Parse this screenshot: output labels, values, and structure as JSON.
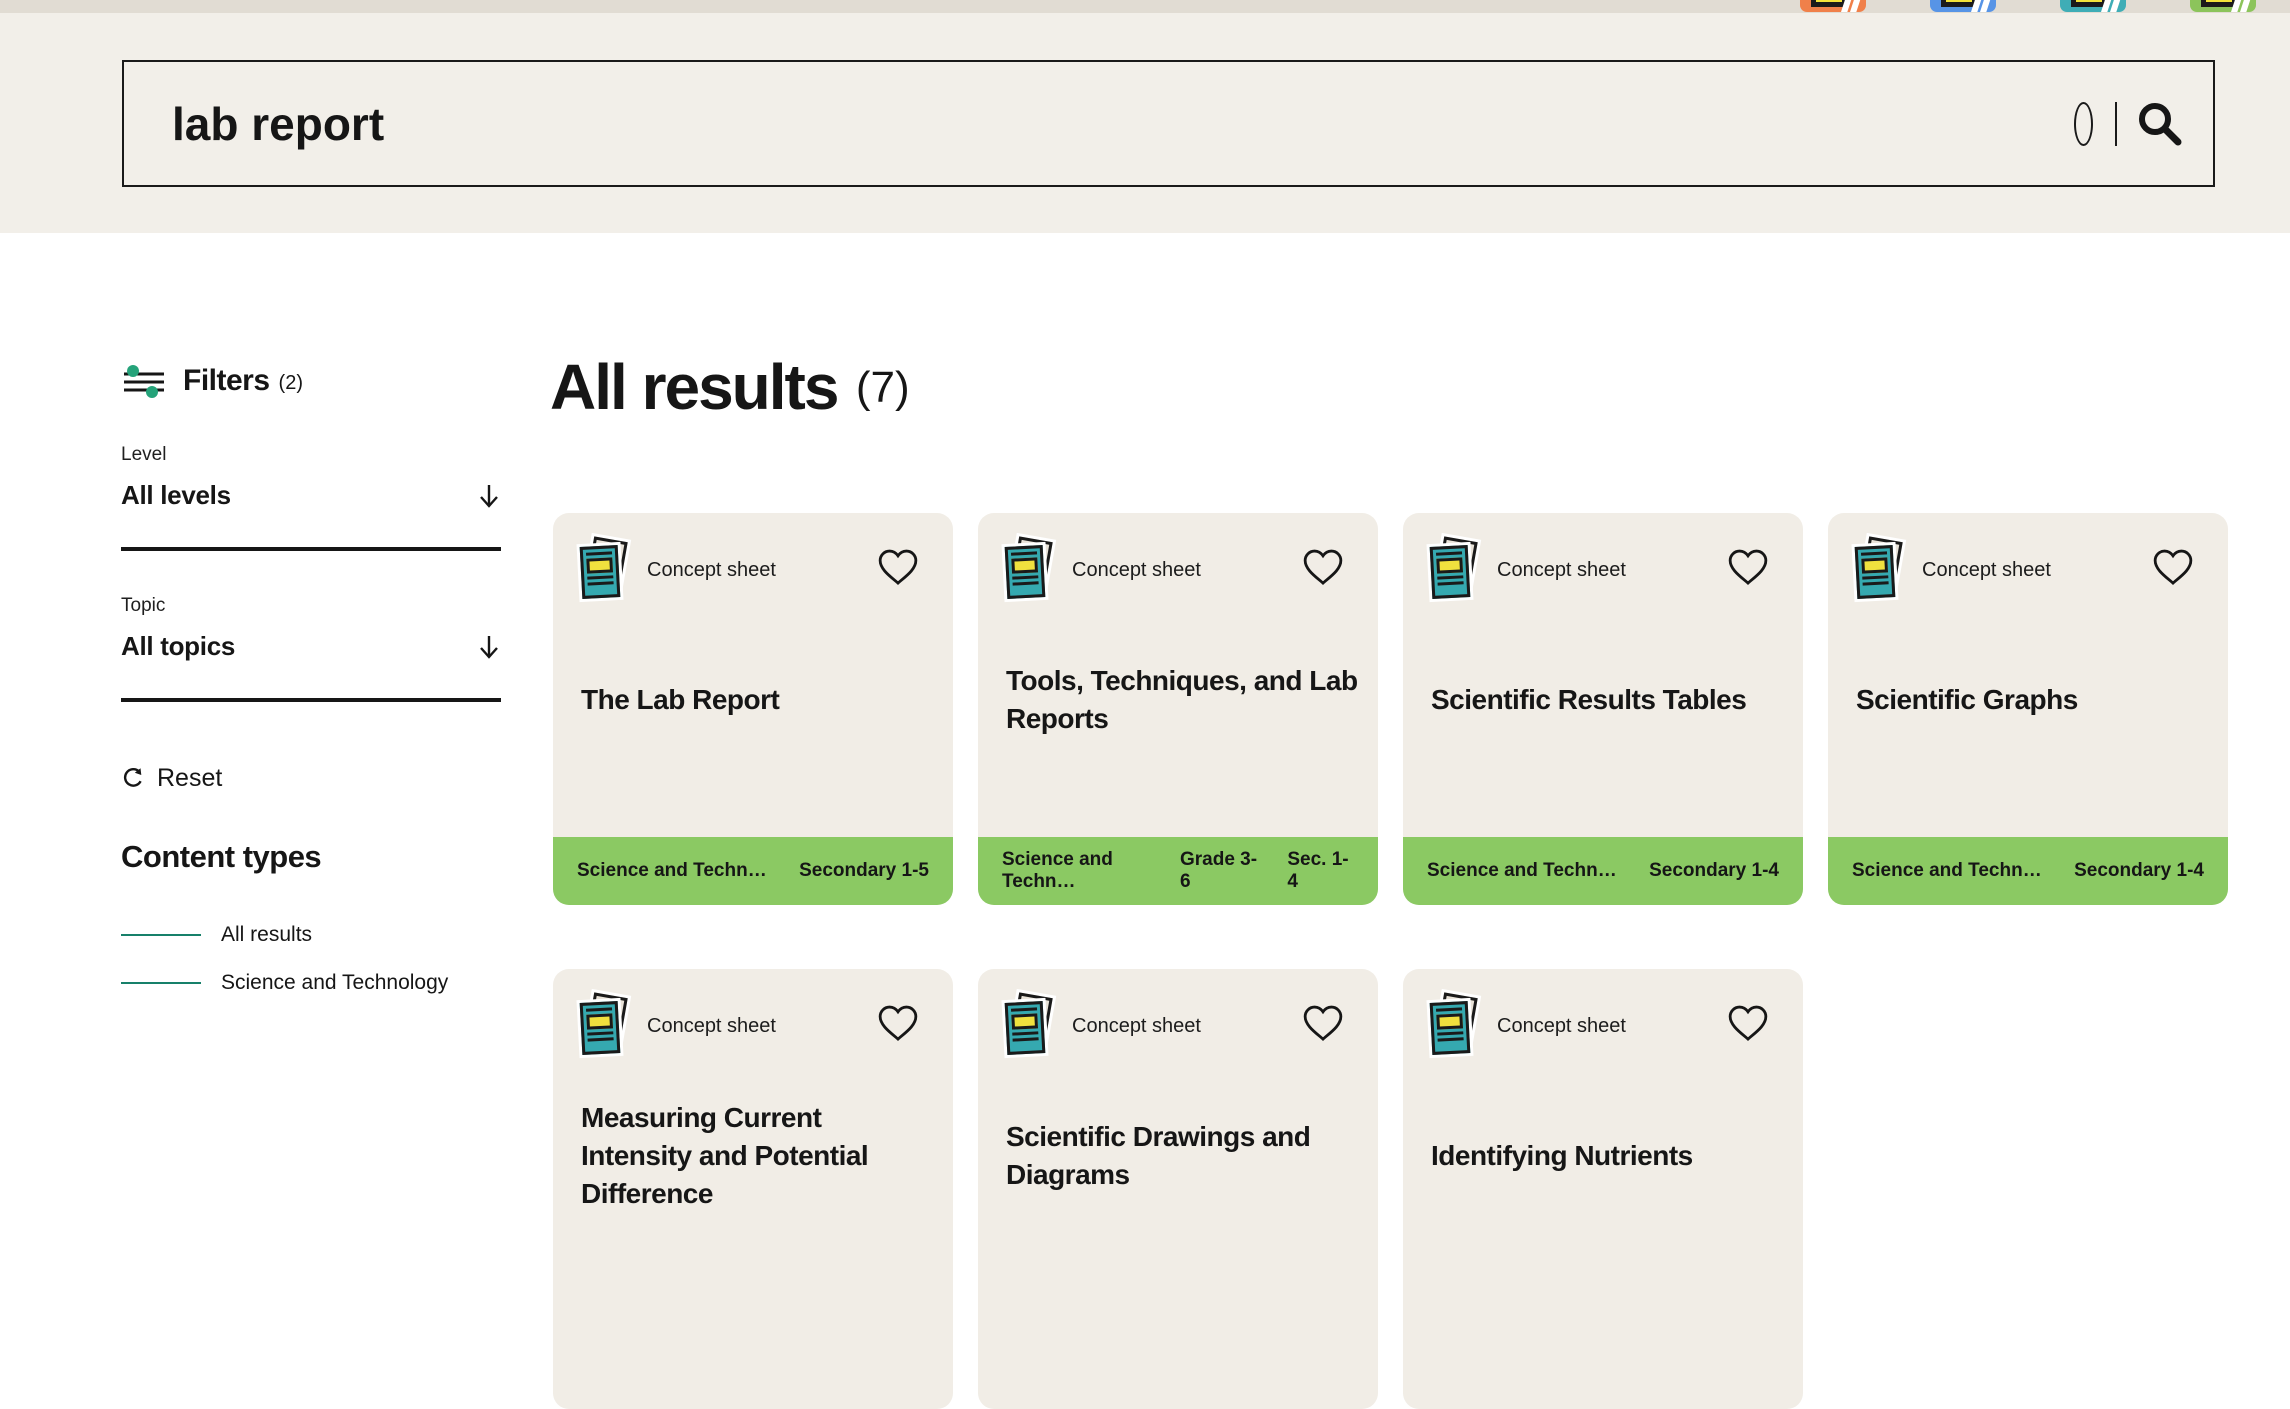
{
  "topbar": {
    "notebook_icon_colors": [
      "#f0804a",
      "#5794e6",
      "#3fadb6",
      "#8cc45b"
    ]
  },
  "search": {
    "query": "lab report",
    "icons": [
      "oval-indicator-icon",
      "magnifier-icon"
    ]
  },
  "filters": {
    "title": "Filters",
    "count": "(2)",
    "groups": [
      {
        "label": "Level",
        "value": "All levels"
      },
      {
        "label": "Topic",
        "value": "All topics"
      }
    ],
    "reset_label": "Reset"
  },
  "content_types": {
    "title": "Content types",
    "items": [
      "All results",
      "Science and Technology"
    ]
  },
  "results": {
    "heading": "All results",
    "count": "(7)",
    "rows": [
      [
        {
          "type": "Concept sheet",
          "title": "The Lab Report",
          "subject": "Science and Techn…",
          "levels": [
            "Secondary 1-5"
          ]
        },
        {
          "type": "Concept sheet",
          "title": "Tools, Techniques, and Lab Reports",
          "subject": "Science and Techn…",
          "levels": [
            "Grade 3-6",
            "Sec. 1-4"
          ]
        },
        {
          "type": "Concept sheet",
          "title": "Scientific Results Tables",
          "subject": "Science and Techn…",
          "levels": [
            "Secondary 1-4"
          ]
        },
        {
          "type": "Concept sheet",
          "title": "Scientific Graphs",
          "subject": "Science and Techn…",
          "levels": [
            "Secondary 1-4"
          ]
        }
      ],
      [
        {
          "type": "Concept sheet",
          "title": "Measuring Current Intensity and Potential Difference",
          "subject": null,
          "levels": null
        },
        {
          "type": "Concept sheet",
          "title": "Scientific Drawings and Diagrams",
          "subject": null,
          "levels": null
        },
        {
          "type": "Concept sheet",
          "title": "Identifying Nutrients",
          "subject": null,
          "levels": null
        }
      ]
    ]
  },
  "colors": {
    "page_band": "#f2efe9",
    "top_strip": "#e1dcd3",
    "content_bg": "#ffffff",
    "card_bg": "#f1ede6",
    "footer_green": "#8bc963",
    "doc_teal": "#35a9b0",
    "doc_yellow": "#f0e13e",
    "accent_teal_green": "#17806a",
    "knob_green": "#25a37a"
  }
}
